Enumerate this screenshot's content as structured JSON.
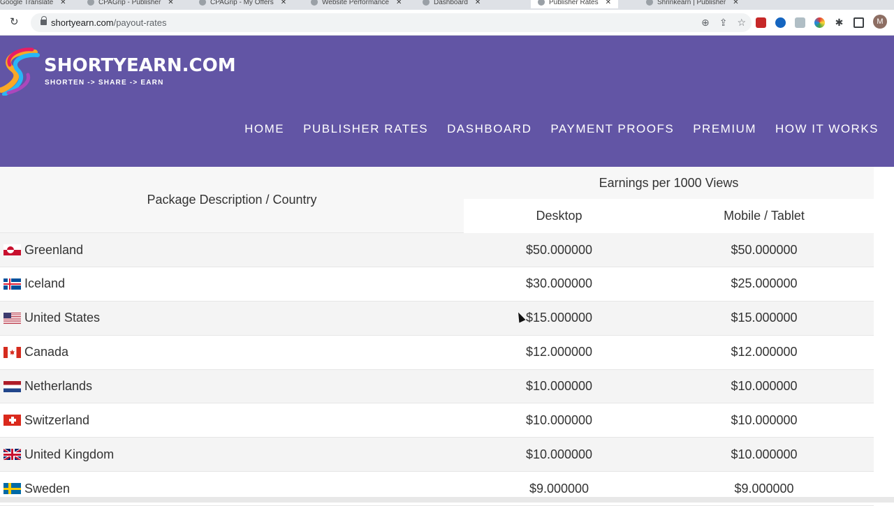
{
  "browser": {
    "tabs": [
      {
        "label": "Google Translate"
      },
      {
        "label": "CPAGrip - Publisher"
      },
      {
        "label": "CPAGrip - My Offers"
      },
      {
        "label": "Website Performance"
      },
      {
        "label": "Dashboard"
      },
      {
        "label": "Publisher Rates"
      },
      {
        "label": "Shrinkearn | Publisher"
      }
    ],
    "url_host": "shortyearn.com",
    "url_path": "/payout-rates",
    "profile_initial": "M"
  },
  "site": {
    "logo_title": "SHORTYEARN.COM",
    "logo_tagline": "SHORTEN -> SHARE -> EARN",
    "nav": [
      "HOME",
      "PUBLISHER RATES",
      "DASHBOARD",
      "PAYMENT PROOFS",
      "PREMIUM",
      "HOW IT WORKS"
    ]
  },
  "table": {
    "col_country": "Package Description / Country",
    "col_earnings": "Earnings per 1000 Views",
    "col_desktop": "Desktop",
    "col_mobile": "Mobile / Tablet",
    "rows": [
      {
        "country": "Greenland",
        "flag": "greenland-flag-icon",
        "desktop": "$50.000000",
        "mobile": "$50.000000"
      },
      {
        "country": "Iceland",
        "flag": "iceland-flag-icon",
        "desktop": "$30.000000",
        "mobile": "$25.000000"
      },
      {
        "country": "United States",
        "flag": "us-flag-icon",
        "desktop": "$15.000000",
        "mobile": "$15.000000"
      },
      {
        "country": "Canada",
        "flag": "canada-flag-icon",
        "desktop": "$12.000000",
        "mobile": "$12.000000"
      },
      {
        "country": "Netherlands",
        "flag": "netherlands-flag-icon",
        "desktop": "$10.000000",
        "mobile": "$10.000000"
      },
      {
        "country": "Switzerland",
        "flag": "switzerland-flag-icon",
        "desktop": "$10.000000",
        "mobile": "$10.000000"
      },
      {
        "country": "United Kingdom",
        "flag": "uk-flag-icon",
        "desktop": "$10.000000",
        "mobile": "$10.000000"
      },
      {
        "country": "Sweden",
        "flag": "sweden-flag-icon",
        "desktop": "$9.000000",
        "mobile": "$9.000000"
      }
    ]
  },
  "colors": {
    "header_bg": "#6255a5",
    "row_stripe": "#f4f4f4"
  }
}
